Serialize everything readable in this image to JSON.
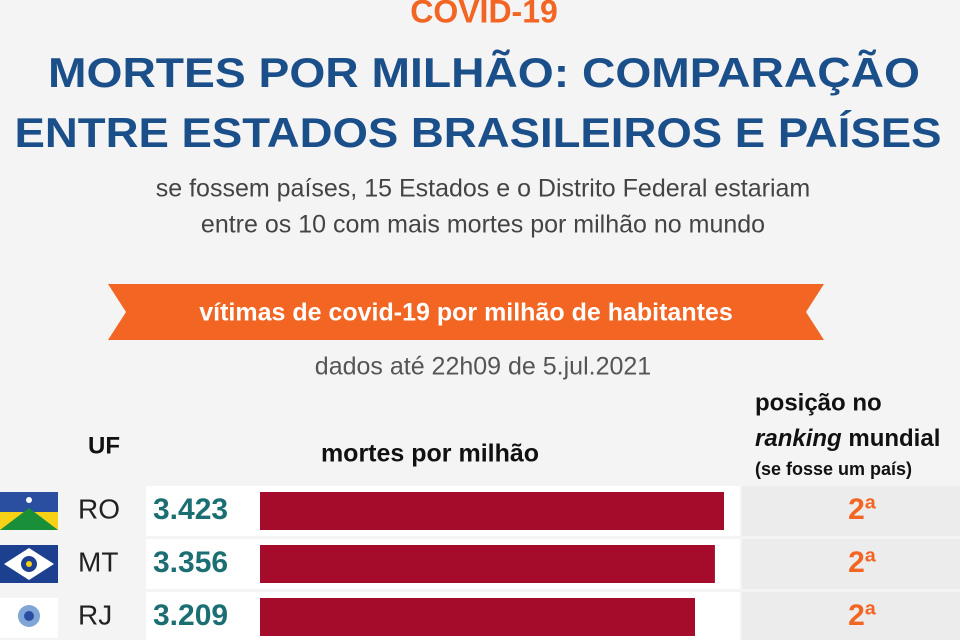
{
  "chart_data": {
    "type": "bar",
    "supertitle": "COVID-19",
    "title_lines": [
      "MORTES POR MILHÃO: COMPARAÇÃO",
      "ENTRE ESTADOS BRASILEIROS E PAÍSES"
    ],
    "subtitle_lines": [
      "se fossem países, 15 Estados e o Distrito Federal estariam",
      "entre os 10 com mais mortes por milhão no mundo"
    ],
    "banner": "vítimas de covid-19 por milhão de habitantes",
    "note": "dados até 22h09 de 5.jul.2021",
    "headers": {
      "category": "UF",
      "value": "mortes por milhão",
      "rank_lines": [
        "posição no",
        "ranking",
        "mundial"
      ],
      "rank_note": "(se fosse um país)"
    },
    "categories": [
      "RO",
      "MT",
      "RJ"
    ],
    "values": [
      3423,
      3356,
      3209
    ],
    "value_labels": [
      "3.423",
      "3.356",
      "3.209"
    ],
    "ranks": [
      "2ª",
      "2ª",
      "2ª"
    ],
    "color": "#a50b2b"
  }
}
